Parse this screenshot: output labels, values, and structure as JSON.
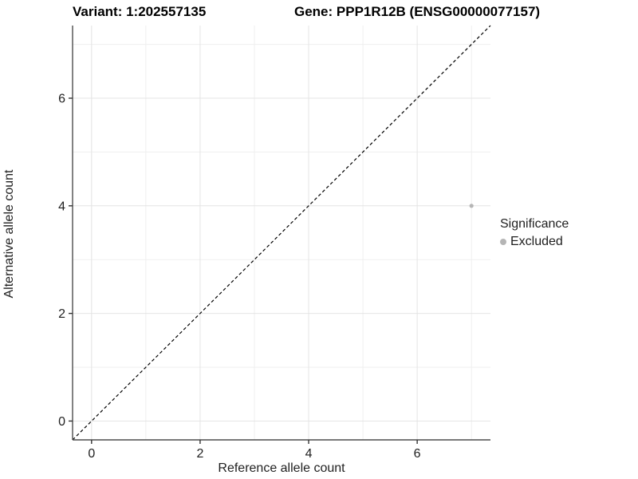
{
  "titles": {
    "left": "Variant: 1:202557135",
    "right": "Gene: PPP1R12B (ENSG00000077157)"
  },
  "chart_data": {
    "type": "scatter",
    "title_left": "Variant: 1:202557135",
    "title_right": "Gene: PPP1R12B (ENSG00000077157)",
    "xlabel": "Reference allele count",
    "ylabel": "Alternative allele count",
    "xlim": [
      -0.35,
      7.35
    ],
    "ylim": [
      -0.35,
      7.35
    ],
    "x_major_ticks": [
      0,
      2,
      4,
      6
    ],
    "y_major_ticks": [
      0,
      2,
      4,
      6
    ],
    "x_minor_ticks": [
      1,
      3,
      5,
      7
    ],
    "y_minor_ticks": [
      1,
      3,
      5,
      7
    ],
    "grid": true,
    "series": [
      {
        "name": "Excluded",
        "color": "#b5b5b5",
        "points": [
          {
            "x": 7,
            "y": 4
          }
        ]
      }
    ],
    "reference_line": {
      "type": "identity",
      "slope": 1,
      "intercept": 0,
      "style": "dashed",
      "color": "#000000"
    },
    "legend": {
      "title": "Significance",
      "position": "right",
      "entries": [
        {
          "label": "Excluded",
          "color": "#b5b5b5"
        }
      ]
    },
    "colors": {
      "axis_line": "#4d4d4d",
      "tick_mark": "#333333",
      "grid_major": "#e4e4e4",
      "grid_minor": "#efefef",
      "background": "#ffffff"
    }
  }
}
